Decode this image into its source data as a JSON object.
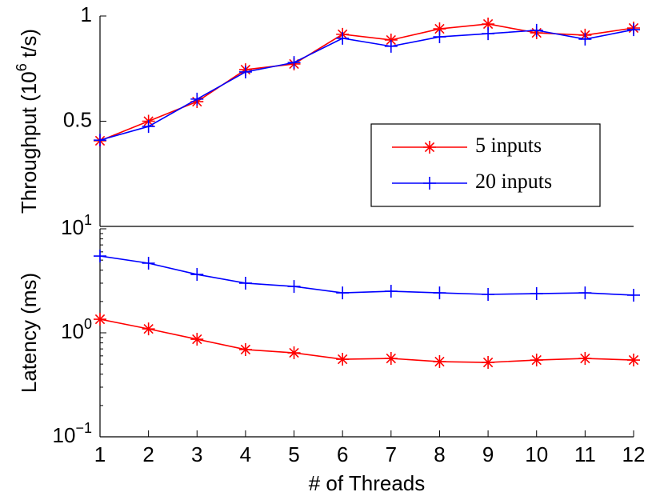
{
  "chart_data": [
    {
      "type": "line",
      "ylabel": "Throughput (10^6 t/s)",
      "x": [
        1,
        2,
        3,
        4,
        5,
        6,
        7,
        8,
        9,
        10,
        11,
        12
      ],
      "xlim": [
        1,
        12
      ],
      "ylim": [
        0,
        1
      ],
      "yticks": [
        0.5,
        1
      ],
      "legend": "center right",
      "series": [
        {
          "name": "5 inputs",
          "color": "#ff0000",
          "marker": "star",
          "values": [
            0.407,
            0.5,
            0.593,
            0.745,
            0.772,
            0.913,
            0.886,
            0.939,
            0.962,
            0.92,
            0.909,
            0.943
          ]
        },
        {
          "name": "20 inputs",
          "color": "#0000ff",
          "marker": "plus",
          "values": [
            0.41,
            0.475,
            0.605,
            0.734,
            0.779,
            0.894,
            0.856,
            0.901,
            0.916,
            0.932,
            0.89,
            0.935
          ]
        }
      ]
    },
    {
      "type": "line",
      "ylabel": "Latency (ms)",
      "xlabel": "# of Threads",
      "x": [
        1,
        2,
        3,
        4,
        5,
        6,
        7,
        8,
        9,
        10,
        11,
        12
      ],
      "xlim": [
        1,
        12
      ],
      "xticks": [
        1,
        2,
        3,
        4,
        5,
        6,
        7,
        8,
        9,
        10,
        11,
        12
      ],
      "ylim": [
        0.1,
        10
      ],
      "log_y": true,
      "yticks": [
        {
          "value": 0.1,
          "label": "10^−1"
        },
        {
          "value": 1,
          "label": "10^0"
        },
        {
          "value": 10,
          "label": "10^1"
        }
      ],
      "series": [
        {
          "name": "5 inputs",
          "color": "#ff0000",
          "marker": "star",
          "values": [
            1.35,
            1.09,
            0.867,
            0.69,
            0.642,
            0.557,
            0.567,
            0.528,
            0.519,
            0.547,
            0.567,
            0.547
          ]
        },
        {
          "name": "20 inputs",
          "color": "#0000ff",
          "marker": "plus",
          "values": [
            5.47,
            4.67,
            3.64,
            3.0,
            2.79,
            2.42,
            2.51,
            2.42,
            2.34,
            2.38,
            2.42,
            2.3
          ]
        }
      ]
    }
  ]
}
